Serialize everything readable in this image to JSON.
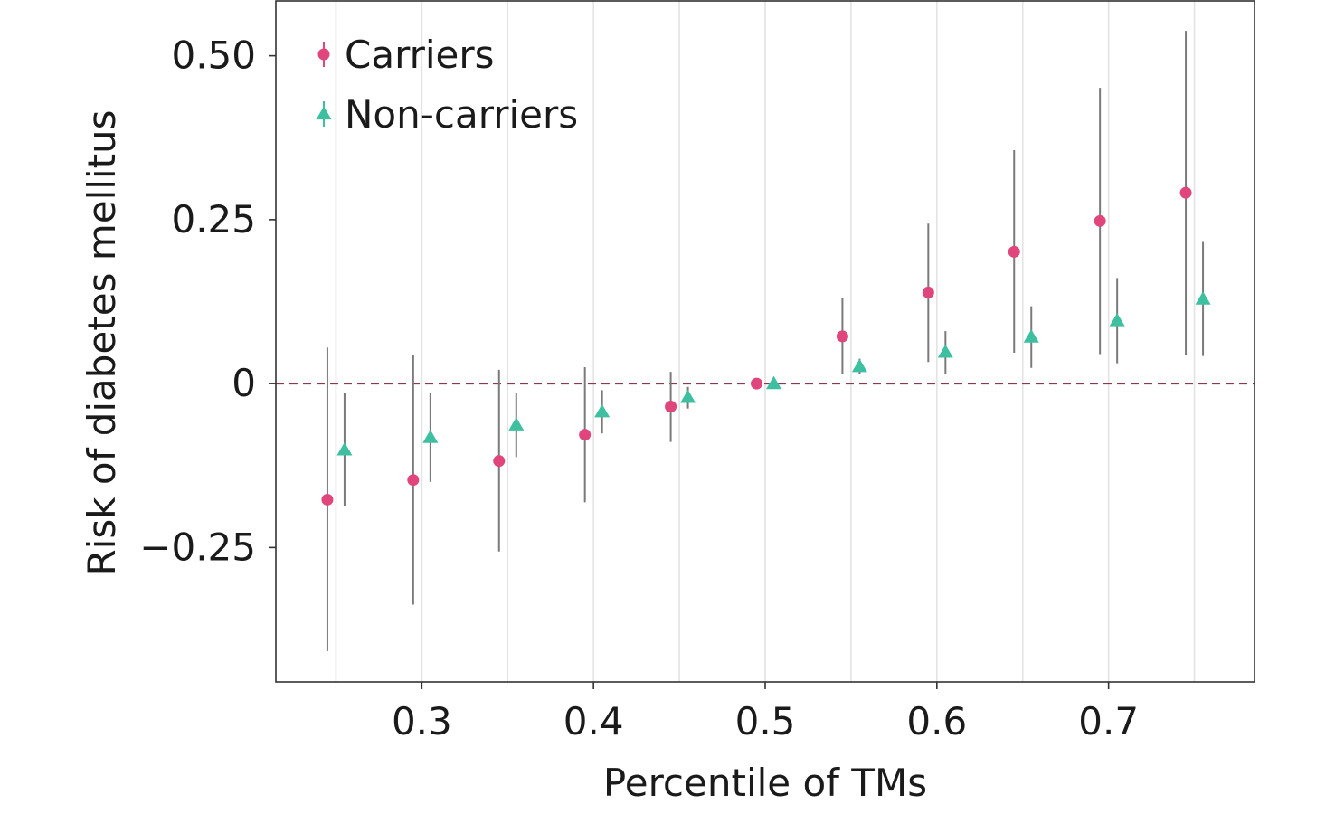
{
  "chart_data": {
    "type": "scatter",
    "title": "",
    "xlabel": "Percentile of TMs",
    "ylabel": "Risk of diabetes mellitus",
    "xlim": [
      0.215,
      0.785
    ],
    "ylim": [
      -0.455,
      0.585
    ],
    "x_ticks": [
      {
        "value": 0.3,
        "label": "0.3"
      },
      {
        "value": 0.4,
        "label": "0.4"
      },
      {
        "value": 0.5,
        "label": "0.5"
      },
      {
        "value": 0.6,
        "label": "0.6"
      },
      {
        "value": 0.7,
        "label": "0.7"
      }
    ],
    "y_ticks": [
      {
        "value": 0.5,
        "label": "0.50"
      },
      {
        "value": 0.25,
        "label": "0.25"
      },
      {
        "value": 0,
        "label": "0"
      },
      {
        "value": -0.25,
        "label": "−0.25"
      }
    ],
    "vertical_grid_at": [
      0.25,
      0.3,
      0.35,
      0.4,
      0.45,
      0.5,
      0.55,
      0.6,
      0.65,
      0.7,
      0.75
    ],
    "horizontal_grid": false,
    "reference_line": {
      "y": 0,
      "style": "dashed",
      "color": "#8a3a4a"
    },
    "errorbar_color": "#7a7a7a",
    "legend_position": "top-left",
    "series": [
      {
        "name": "Carriers",
        "marker": "circle",
        "color": "#e0457b",
        "points": [
          {
            "x": 0.25,
            "y": -0.177,
            "lo": -0.408,
            "hi": 0.055
          },
          {
            "x": 0.3,
            "y": -0.147,
            "lo": -0.337,
            "hi": 0.043
          },
          {
            "x": 0.35,
            "y": -0.118,
            "lo": -0.256,
            "hi": 0.021
          },
          {
            "x": 0.4,
            "y": -0.078,
            "lo": -0.181,
            "hi": 0.025
          },
          {
            "x": 0.45,
            "y": -0.035,
            "lo": -0.089,
            "hi": 0.018
          },
          {
            "x": 0.5,
            "y": 0.0,
            "lo": 0.0,
            "hi": 0.0
          },
          {
            "x": 0.55,
            "y": 0.072,
            "lo": 0.014,
            "hi": 0.13
          },
          {
            "x": 0.6,
            "y": 0.139,
            "lo": 0.033,
            "hi": 0.244
          },
          {
            "x": 0.65,
            "y": 0.201,
            "lo": 0.047,
            "hi": 0.356
          },
          {
            "x": 0.7,
            "y": 0.248,
            "lo": 0.045,
            "hi": 0.451
          },
          {
            "x": 0.75,
            "y": 0.291,
            "lo": 0.043,
            "hi": 0.538
          }
        ]
      },
      {
        "name": "Non-carriers",
        "marker": "triangle",
        "color": "#3dbfa0",
        "points": [
          {
            "x": 0.25,
            "y": -0.101,
            "lo": -0.187,
            "hi": -0.015
          },
          {
            "x": 0.3,
            "y": -0.082,
            "lo": -0.15,
            "hi": -0.015
          },
          {
            "x": 0.35,
            "y": -0.063,
            "lo": -0.112,
            "hi": -0.014
          },
          {
            "x": 0.4,
            "y": -0.043,
            "lo": -0.076,
            "hi": -0.01
          },
          {
            "x": 0.45,
            "y": -0.021,
            "lo": -0.038,
            "hi": -0.005
          },
          {
            "x": 0.5,
            "y": 0.0,
            "lo": 0.0,
            "hi": 0.0
          },
          {
            "x": 0.55,
            "y": 0.026,
            "lo": 0.014,
            "hi": 0.038
          },
          {
            "x": 0.6,
            "y": 0.048,
            "lo": 0.015,
            "hi": 0.08
          },
          {
            "x": 0.65,
            "y": 0.071,
            "lo": 0.024,
            "hi": 0.118
          },
          {
            "x": 0.7,
            "y": 0.096,
            "lo": 0.031,
            "hi": 0.161
          },
          {
            "x": 0.75,
            "y": 0.129,
            "lo": 0.042,
            "hi": 0.216
          }
        ]
      }
    ]
  }
}
